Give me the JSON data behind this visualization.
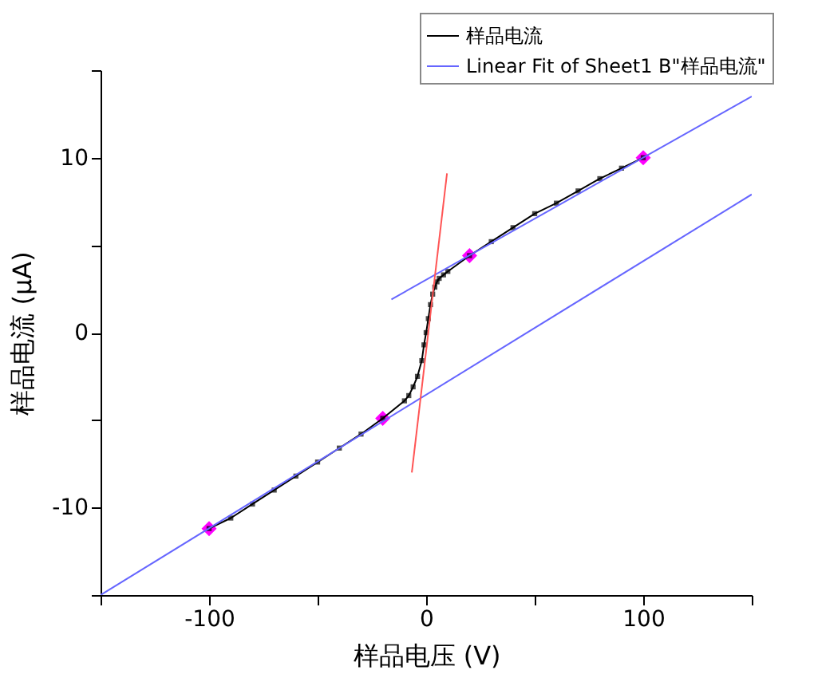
{
  "chart_data": {
    "type": "line",
    "xlabel": "样品电压 (V)",
    "ylabel": "样品电流 (μA)",
    "xlim": [
      -150,
      150
    ],
    "ylim": [
      -15,
      15
    ],
    "xticks": [
      {
        "value": -150,
        "label": null
      },
      -100,
      {
        "value": -50,
        "label": null
      },
      0,
      {
        "value": 50,
        "label": null
      },
      100,
      {
        "value": 150,
        "label": null
      }
    ],
    "yticks": [
      {
        "value": -15,
        "label": null
      },
      -10,
      {
        "value": -5,
        "label": null
      },
      0,
      {
        "value": 5,
        "label": null
      },
      10,
      {
        "value": 15,
        "label": null
      }
    ],
    "grid": false,
    "legend": "top right",
    "series": [
      {
        "type": "scatter",
        "color": "#ff00ff",
        "marker": "diamond",
        "x": [
          -100,
          -20,
          20,
          100
        ],
        "values": [
          -11.2,
          -4.9,
          4.4,
          10.0
        ]
      },
      {
        "name": "样品电流",
        "color": "#000000",
        "marker": "square",
        "x": [
          -100,
          -90,
          -80,
          -70,
          -60,
          -50,
          -40,
          -30,
          -20,
          -10,
          -8,
          -6,
          -4,
          -2,
          -1,
          0,
          1,
          2,
          3,
          4,
          5,
          6,
          8,
          10,
          20,
          30,
          40,
          50,
          60,
          70,
          80,
          90,
          100
        ],
        "values": [
          -11.2,
          -10.6,
          -9.8,
          -9.0,
          -8.2,
          -7.4,
          -6.6,
          -5.8,
          -4.9,
          -3.9,
          -3.6,
          -3.1,
          -2.5,
          -1.6,
          -0.7,
          0.0,
          0.8,
          1.6,
          2.2,
          2.6,
          2.9,
          3.1,
          3.3,
          3.5,
          4.4,
          5.2,
          6.0,
          6.8,
          7.4,
          8.1,
          8.8,
          9.4,
          10.0
        ]
      },
      {
        "name": "Linear Fit of Sheet1 B\"样品电流\"",
        "color": "#6666ff",
        "marker": "none",
        "x": [
          -16,
          150
        ],
        "values": [
          1.9,
          13.5
        ]
      },
      {
        "color": "#6666ff",
        "marker": "none",
        "x": [
          -150,
          150
        ],
        "values": [
          -15,
          7.9
        ]
      },
      {
        "color": "#ff5555",
        "marker": "none",
        "x": [
          -6.6,
          9.6
        ],
        "values": [
          -8.0,
          9.1
        ]
      }
    ]
  }
}
